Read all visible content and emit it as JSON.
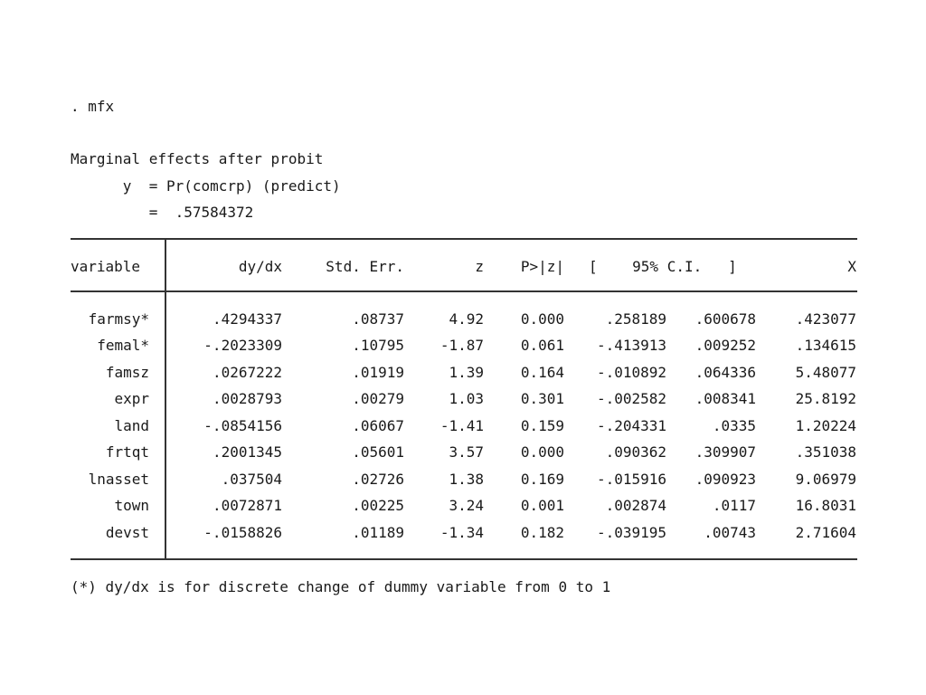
{
  "command": ". mfx",
  "title": "Marginal effects after probit",
  "y_line": "      y  = Pr(comcrp) (predict)",
  "eq_line": "         =  .57584372",
  "header": {
    "variable": "variable",
    "dydx": "dy/dx",
    "se": "Std. Err.",
    "z": "z",
    "p": "P>|z|",
    "ci": "[    95% C.I.   ]",
    "x": "X"
  },
  "rows": [
    {
      "variable": "farmsy*",
      "dydx": ".4294337",
      "se": ".08737",
      "z": "4.92",
      "p": "0.000",
      "lo": ".258189",
      "hi": ".600678",
      "x": ".423077"
    },
    {
      "variable": "femal*",
      "dydx": "-.2023309",
      "se": ".10795",
      "z": "-1.87",
      "p": "0.061",
      "lo": "-.413913",
      "hi": ".009252",
      "x": ".134615"
    },
    {
      "variable": "famsz",
      "dydx": ".0267222",
      "se": ".01919",
      "z": "1.39",
      "p": "0.164",
      "lo": "-.010892",
      "hi": ".064336",
      "x": "5.48077"
    },
    {
      "variable": "expr",
      "dydx": ".0028793",
      "se": ".00279",
      "z": "1.03",
      "p": "0.301",
      "lo": "-.002582",
      "hi": ".008341",
      "x": "25.8192"
    },
    {
      "variable": "land",
      "dydx": "-.0854156",
      "se": ".06067",
      "z": "-1.41",
      "p": "0.159",
      "lo": "-.204331",
      "hi": ".0335",
      "x": "1.20224"
    },
    {
      "variable": "frtqt",
      "dydx": ".2001345",
      "se": ".05601",
      "z": "3.57",
      "p": "0.000",
      "lo": ".090362",
      "hi": ".309907",
      "x": ".351038"
    },
    {
      "variable": "lnasset",
      "dydx": ".037504",
      "se": ".02726",
      "z": "1.38",
      "p": "0.169",
      "lo": "-.015916",
      "hi": ".090923",
      "x": "9.06979"
    },
    {
      "variable": "town",
      "dydx": ".0072871",
      "se": ".00225",
      "z": "3.24",
      "p": "0.001",
      "lo": ".002874",
      "hi": ".0117",
      "x": "16.8031"
    },
    {
      "variable": "devst",
      "dydx": "-.0158826",
      "se": ".01189",
      "z": "-1.34",
      "p": "0.182",
      "lo": "-.039195",
      "hi": ".00743",
      "x": "2.71604"
    }
  ],
  "footnote": "(*) dy/dx is for discrete change of dummy variable from 0 to 1"
}
